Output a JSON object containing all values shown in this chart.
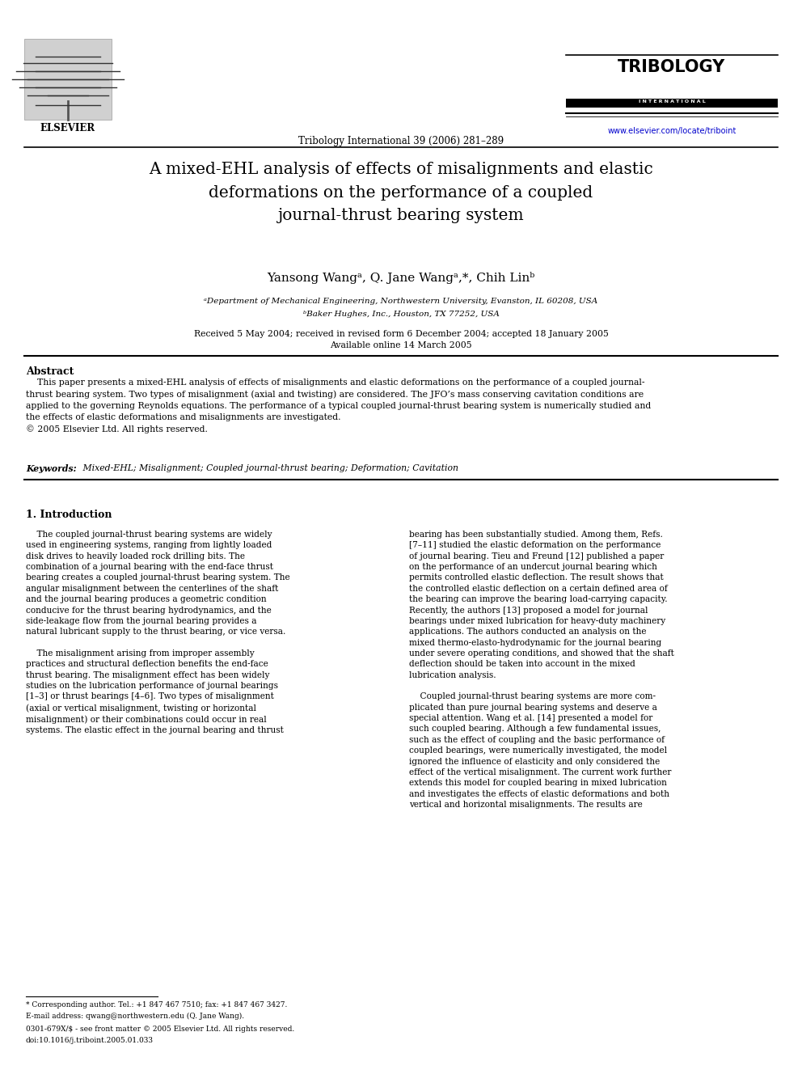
{
  "background_color": "#ffffff",
  "page_width": 9.92,
  "page_height": 13.23,
  "header": {
    "elsevier_text": "ELSEVIER",
    "journal_line": "Tribology International 39 (2006) 281–289",
    "tribology_title": "TRIBOLOGY",
    "tribology_subtitle": "INTERNATIONAL",
    "website": "www.elsevier.com/locate/triboint",
    "website_color": "#0000cc"
  },
  "title": "A mixed-EHL analysis of effects of misalignments and elastic\ndeformations on the performance of a coupled\njournal-thrust bearing system",
  "authors": "Yansong Wangᵃ, Q. Jane Wangᵃ,*, Chih Linᵇ",
  "affiliation_a": "ᵃDepartment of Mechanical Engineering, Northwestern University, Evanston, IL 60208, USA",
  "affiliation_b": "ᵇBaker Hughes, Inc., Houston, TX 77252, USA",
  "received_line": "Received 5 May 2004; received in revised form 6 December 2004; accepted 18 January 2005",
  "available_line": "Available online 14 March 2005",
  "abstract_heading": "Abstract",
  "abstract_text": "    This paper presents a mixed-EHL analysis of effects of misalignments and elastic deformations on the performance of a coupled journal-\nthrust bearing system. Two types of misalignment (axial and twisting) are considered. The JFO’s mass conserving cavitation conditions are\napplied to the governing Reynolds equations. The performance of a typical coupled journal-thrust bearing system is numerically studied and\nthe effects of elastic deformations and misalignments are investigated.\n© 2005 Elsevier Ltd. All rights reserved.",
  "keywords_label": "Keywords:",
  "keywords_text": " Mixed-EHL; Misalignment; Coupled journal-thrust bearing; Deformation; Cavitation",
  "section1_heading": "1. Introduction",
  "section1_col1": "    The coupled journal-thrust bearing systems are widely\nused in engineering systems, ranging from lightly loaded\ndisk drives to heavily loaded rock drilling bits. The\ncombination of a journal bearing with the end-face thrust\nbearing creates a coupled journal-thrust bearing system. The\nangular misalignment between the centerlines of the shaft\nand the journal bearing produces a geometric condition\nconducive for the thrust bearing hydrodynamics, and the\nside-leakage flow from the journal bearing provides a\nnatural lubricant supply to the thrust bearing, or vice versa.\n\n    The misalignment arising from improper assembly\npractices and structural deflection benefits the end-face\nthrust bearing. The misalignment effect has been widely\nstudies on the lubrication performance of journal bearings\n[1–3] or thrust bearings [4–6]. Two types of misalignment\n(axial or vertical misalignment, twisting or horizontal\nmisalignment) or their combinations could occur in real\nsystems. The elastic effect in the journal bearing and thrust",
  "section1_col2": "bearing has been substantially studied. Among them, Refs.\n[7–11] studied the elastic deformation on the performance\nof journal bearing. Tieu and Freund [12] published a paper\non the performance of an undercut journal bearing which\npermits controlled elastic deflection. The result shows that\nthe controlled elastic deflection on a certain defined area of\nthe bearing can improve the bearing load-carrying capacity.\nRecently, the authors [13] proposed a model for journal\nbearings under mixed lubrication for heavy-duty machinery\napplications. The authors conducted an analysis on the\nmixed thermo-elasto-hydrodynamic for the journal bearing\nunder severe operating conditions, and showed that the shaft\ndeflection should be taken into account in the mixed\nlubrication analysis.\n\n    Coupled journal-thrust bearing systems are more com-\nplicated than pure journal bearing systems and deserve a\nspecial attention. Wang et al. [14] presented a model for\nsuch coupled bearing. Although a few fundamental issues,\nsuch as the effect of coupling and the basic performance of\ncoupled bearings, were numerically investigated, the model\nignored the influence of elasticity and only considered the\neffect of the vertical misalignment. The current work further\nextends this model for coupled bearing in mixed lubrication\nand investigates the effects of elastic deformations and both\nvertical and horizontal misalignments. The results are",
  "footnote_star": "* Corresponding author. Tel.: +1 847 467 7510; fax: +1 847 467 3427.",
  "footnote_email": "E-mail address: qwang@northwestern.edu (Q. Jane Wang).",
  "footnote_issn": "0301-679X/$ - see front matter © 2005 Elsevier Ltd. All rights reserved.",
  "footnote_doi": "doi:10.1016/j.triboint.2005.01.033"
}
